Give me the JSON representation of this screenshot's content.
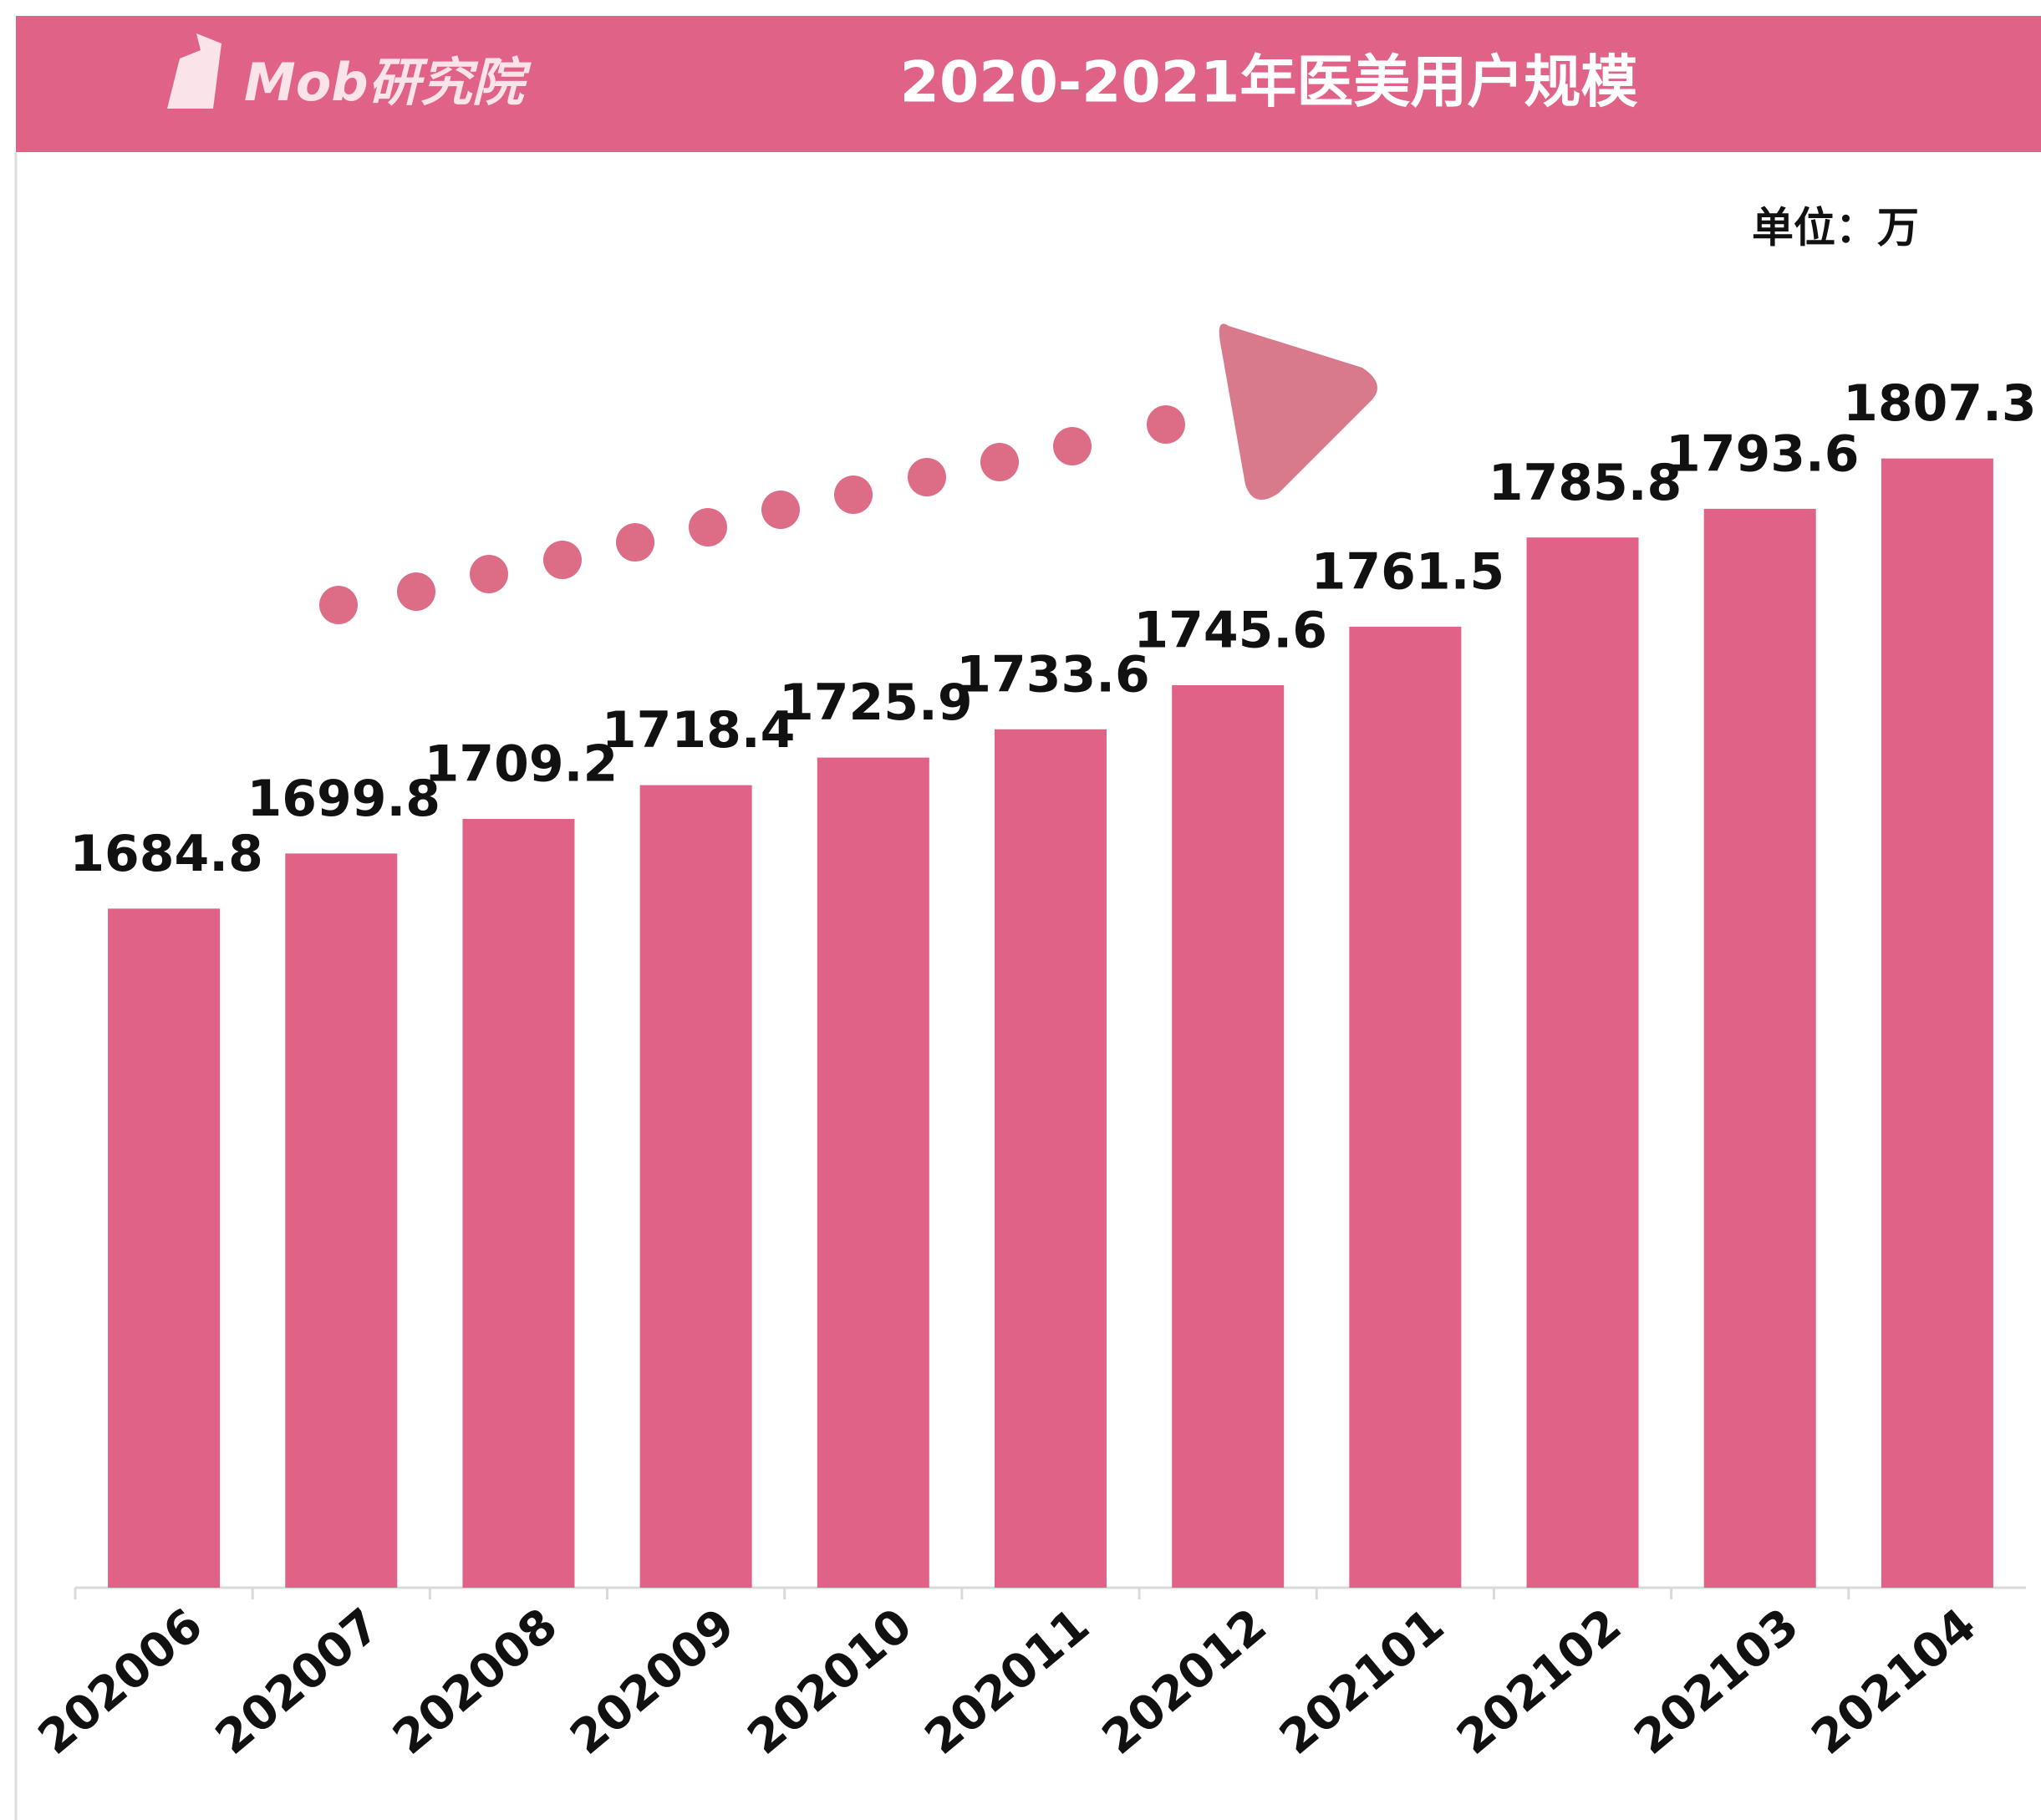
{
  "chart_data": {
    "type": "bar",
    "title": "2020-2021年医美用户规模",
    "logo": "Mob研究院",
    "unit_note": "单位：万",
    "categories": [
      "202006",
      "202007",
      "202008",
      "202009",
      "202010",
      "202011",
      "202012",
      "202101",
      "202102",
      "202103",
      "202104"
    ],
    "values": [
      1684.8,
      1699.8,
      1709.2,
      1718.4,
      1725.9,
      1733.6,
      1745.6,
      1761.5,
      1785.8,
      1793.6,
      1807.3
    ],
    "color": "#e06387",
    "ylim": [
      1500,
      1900
    ]
  }
}
